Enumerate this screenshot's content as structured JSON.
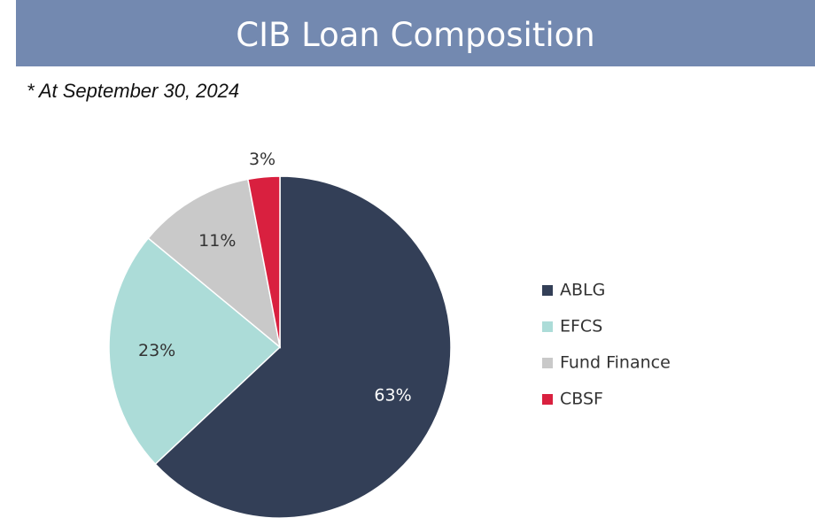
{
  "chart_data": {
    "type": "pie",
    "title": "CIB Loan Composition",
    "subtitle": "* At September 30, 2024",
    "categories": [
      "ABLG",
      "EFCS",
      "Fund Finance",
      "CBSF"
    ],
    "values": [
      63,
      23,
      11,
      3
    ],
    "value_labels": [
      "63%",
      "23%",
      "11%",
      "3%"
    ],
    "colors": [
      "#333f57",
      "#acdcd8",
      "#c9c9c9",
      "#d9203f"
    ],
    "legend": "right"
  }
}
